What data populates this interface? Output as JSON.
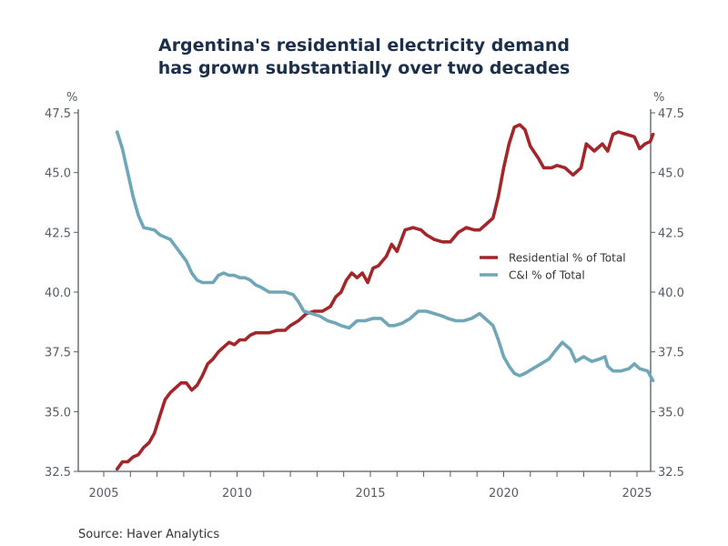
{
  "title_line1": "Argentina's residential electricity demand",
  "title_line2": "has grown substantially over two decades",
  "source": "Source:  Haver Analytics",
  "chart_data": {
    "type": "line",
    "title": "Argentina's residential electricity demand has grown substantially over two decades",
    "xlabel": "",
    "ylabel_left": "%",
    "ylabel_right": "%",
    "xlim": [
      2004,
      2025.6
    ],
    "ylim": [
      32.5,
      47.5
    ],
    "x_ticks": [
      2005,
      2010,
      2015,
      2020,
      2025
    ],
    "y_ticks": [
      "32.5",
      "35.0",
      "37.5",
      "40.0",
      "42.5",
      "45.0",
      "47.5"
    ],
    "grid": false,
    "legend_position": "center-right",
    "colors": {
      "residential": "#a3262a",
      "ci": "#6fa6b8",
      "axis": "#555c66"
    },
    "series": [
      {
        "name": "Residential % of Total",
        "color": "#a3262a",
        "points": [
          [
            2005.5,
            32.6
          ],
          [
            2005.7,
            32.9
          ],
          [
            2005.9,
            32.9
          ],
          [
            2006.1,
            33.1
          ],
          [
            2006.3,
            33.2
          ],
          [
            2006.5,
            33.5
          ],
          [
            2006.7,
            33.7
          ],
          [
            2006.9,
            34.1
          ],
          [
            2007.1,
            34.8
          ],
          [
            2007.3,
            35.5
          ],
          [
            2007.5,
            35.8
          ],
          [
            2007.7,
            36.0
          ],
          [
            2007.9,
            36.2
          ],
          [
            2008.1,
            36.2
          ],
          [
            2008.3,
            35.9
          ],
          [
            2008.5,
            36.1
          ],
          [
            2008.7,
            36.5
          ],
          [
            2008.9,
            37.0
          ],
          [
            2009.1,
            37.2
          ],
          [
            2009.3,
            37.5
          ],
          [
            2009.5,
            37.7
          ],
          [
            2009.7,
            37.9
          ],
          [
            2009.9,
            37.8
          ],
          [
            2010.1,
            38.0
          ],
          [
            2010.3,
            38.0
          ],
          [
            2010.5,
            38.2
          ],
          [
            2010.7,
            38.3
          ],
          [
            2010.9,
            38.3
          ],
          [
            2011.2,
            38.3
          ],
          [
            2011.5,
            38.4
          ],
          [
            2011.8,
            38.4
          ],
          [
            2012.0,
            38.6
          ],
          [
            2012.3,
            38.8
          ],
          [
            2012.6,
            39.1
          ],
          [
            2012.9,
            39.2
          ],
          [
            2013.2,
            39.2
          ],
          [
            2013.5,
            39.4
          ],
          [
            2013.7,
            39.8
          ],
          [
            2013.9,
            40.0
          ],
          [
            2014.1,
            40.5
          ],
          [
            2014.3,
            40.8
          ],
          [
            2014.5,
            40.6
          ],
          [
            2014.7,
            40.8
          ],
          [
            2014.9,
            40.4
          ],
          [
            2015.1,
            41.0
          ],
          [
            2015.3,
            41.1
          ],
          [
            2015.6,
            41.5
          ],
          [
            2015.8,
            42.0
          ],
          [
            2016.0,
            41.7
          ],
          [
            2016.3,
            42.6
          ],
          [
            2016.6,
            42.7
          ],
          [
            2016.9,
            42.6
          ],
          [
            2017.1,
            42.4
          ],
          [
            2017.4,
            42.2
          ],
          [
            2017.7,
            42.1
          ],
          [
            2018.0,
            42.1
          ],
          [
            2018.3,
            42.5
          ],
          [
            2018.6,
            42.7
          ],
          [
            2018.9,
            42.6
          ],
          [
            2019.1,
            42.6
          ],
          [
            2019.3,
            42.8
          ],
          [
            2019.6,
            43.1
          ],
          [
            2019.8,
            44.0
          ],
          [
            2020.0,
            45.2
          ],
          [
            2020.2,
            46.2
          ],
          [
            2020.4,
            46.9
          ],
          [
            2020.6,
            47.0
          ],
          [
            2020.8,
            46.8
          ],
          [
            2021.0,
            46.1
          ],
          [
            2021.3,
            45.6
          ],
          [
            2021.5,
            45.2
          ],
          [
            2021.8,
            45.2
          ],
          [
            2022.0,
            45.3
          ],
          [
            2022.3,
            45.2
          ],
          [
            2022.6,
            44.9
          ],
          [
            2022.9,
            45.2
          ],
          [
            2023.1,
            46.2
          ],
          [
            2023.4,
            45.9
          ],
          [
            2023.7,
            46.2
          ],
          [
            2023.9,
            45.9
          ],
          [
            2024.1,
            46.6
          ],
          [
            2024.3,
            46.7
          ],
          [
            2024.6,
            46.6
          ],
          [
            2024.9,
            46.5
          ],
          [
            2025.1,
            46.0
          ],
          [
            2025.3,
            46.2
          ],
          [
            2025.5,
            46.3
          ],
          [
            2025.6,
            46.6
          ]
        ]
      },
      {
        "name": "C&I % of Total",
        "color": "#6fa6b8",
        "points": [
          [
            2005.5,
            46.7
          ],
          [
            2005.7,
            46.0
          ],
          [
            2005.9,
            45.0
          ],
          [
            2006.1,
            44.0
          ],
          [
            2006.3,
            43.2
          ],
          [
            2006.5,
            42.7
          ],
          [
            2006.7,
            42.65
          ],
          [
            2006.9,
            42.6
          ],
          [
            2007.1,
            42.4
          ],
          [
            2007.3,
            42.3
          ],
          [
            2007.5,
            42.2
          ],
          [
            2007.7,
            41.9
          ],
          [
            2007.9,
            41.6
          ],
          [
            2008.1,
            41.3
          ],
          [
            2008.3,
            40.8
          ],
          [
            2008.5,
            40.5
          ],
          [
            2008.7,
            40.4
          ],
          [
            2008.9,
            40.4
          ],
          [
            2009.1,
            40.4
          ],
          [
            2009.3,
            40.7
          ],
          [
            2009.5,
            40.8
          ],
          [
            2009.7,
            40.7
          ],
          [
            2009.9,
            40.7
          ],
          [
            2010.1,
            40.6
          ],
          [
            2010.3,
            40.6
          ],
          [
            2010.5,
            40.5
          ],
          [
            2010.7,
            40.3
          ],
          [
            2010.9,
            40.2
          ],
          [
            2011.2,
            40.0
          ],
          [
            2011.5,
            40.0
          ],
          [
            2011.8,
            40.0
          ],
          [
            2012.1,
            39.9
          ],
          [
            2012.3,
            39.6
          ],
          [
            2012.5,
            39.2
          ],
          [
            2012.8,
            39.1
          ],
          [
            2013.1,
            39.0
          ],
          [
            2013.4,
            38.8
          ],
          [
            2013.7,
            38.7
          ],
          [
            2013.9,
            38.6
          ],
          [
            2014.2,
            38.5
          ],
          [
            2014.5,
            38.8
          ],
          [
            2014.8,
            38.8
          ],
          [
            2015.1,
            38.9
          ],
          [
            2015.4,
            38.9
          ],
          [
            2015.7,
            38.6
          ],
          [
            2015.9,
            38.6
          ],
          [
            2016.2,
            38.7
          ],
          [
            2016.5,
            38.9
          ],
          [
            2016.8,
            39.2
          ],
          [
            2017.1,
            39.2
          ],
          [
            2017.4,
            39.1
          ],
          [
            2017.7,
            39.0
          ],
          [
            2017.9,
            38.9
          ],
          [
            2018.2,
            38.8
          ],
          [
            2018.5,
            38.8
          ],
          [
            2018.8,
            38.9
          ],
          [
            2019.1,
            39.1
          ],
          [
            2019.3,
            38.9
          ],
          [
            2019.6,
            38.6
          ],
          [
            2019.8,
            38.0
          ],
          [
            2020.0,
            37.3
          ],
          [
            2020.2,
            36.9
          ],
          [
            2020.4,
            36.6
          ],
          [
            2020.6,
            36.5
          ],
          [
            2020.8,
            36.6
          ],
          [
            2021.1,
            36.8
          ],
          [
            2021.4,
            37.0
          ],
          [
            2021.7,
            37.2
          ],
          [
            2021.9,
            37.5
          ],
          [
            2022.2,
            37.9
          ],
          [
            2022.5,
            37.6
          ],
          [
            2022.7,
            37.1
          ],
          [
            2023.0,
            37.3
          ],
          [
            2023.3,
            37.1
          ],
          [
            2023.6,
            37.2
          ],
          [
            2023.8,
            37.3
          ],
          [
            2023.9,
            36.9
          ],
          [
            2024.1,
            36.7
          ],
          [
            2024.4,
            36.7
          ],
          [
            2024.7,
            36.8
          ],
          [
            2024.9,
            37.0
          ],
          [
            2025.1,
            36.8
          ],
          [
            2025.4,
            36.7
          ],
          [
            2025.6,
            36.3
          ]
        ]
      }
    ]
  }
}
